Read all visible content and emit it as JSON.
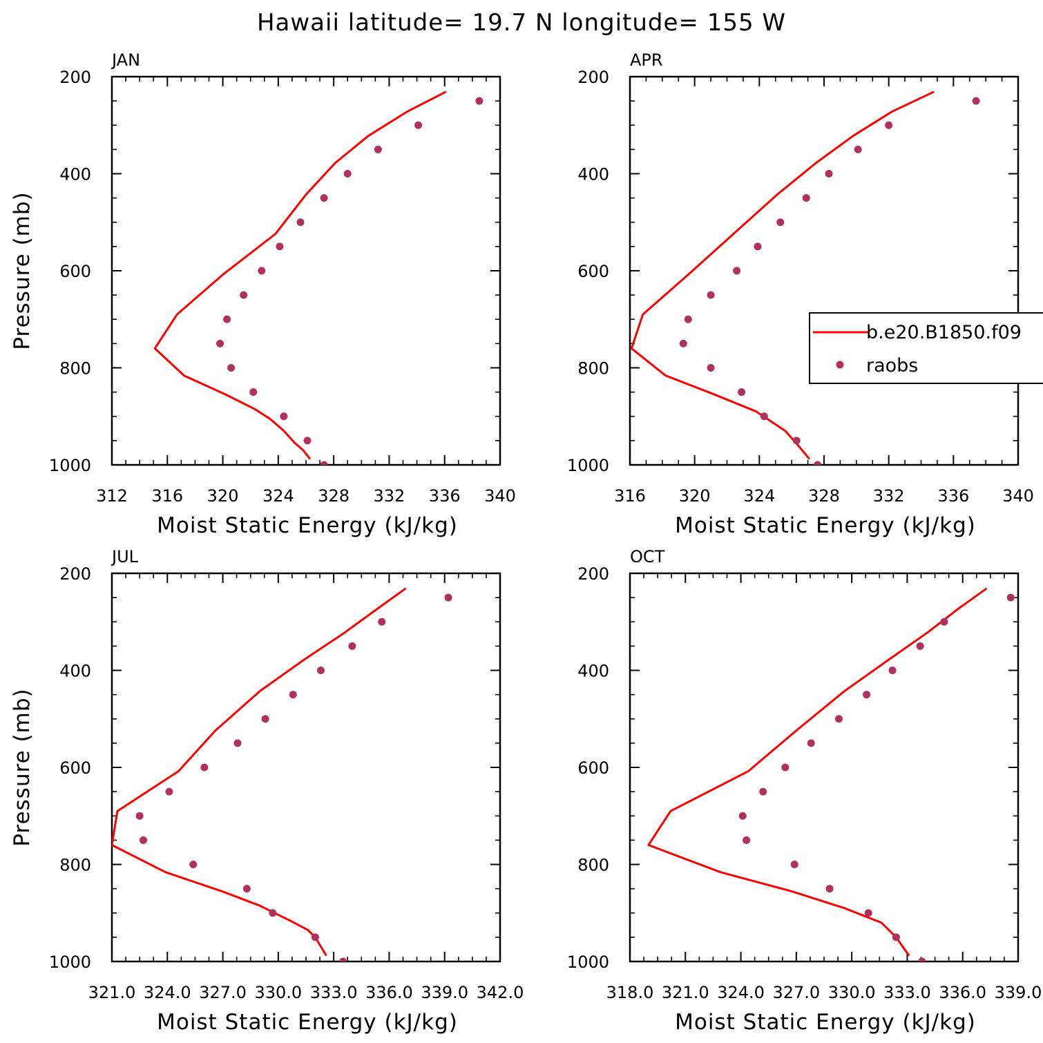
{
  "title": "Hawaii  latitude= 19.7 N longitude= 155 W",
  "colors": {
    "model_line": "#ff0000",
    "raobs_dot": "#b03060"
  },
  "legend": {
    "model_label": "b.e20.B1850.f09",
    "obs_label": "raobs"
  },
  "chart_data": [
    {
      "type": "scatter",
      "panel": "JAN",
      "xlabel": "Moist Static Energy (kJ/kg)",
      "ylabel": "Pressure (mb)",
      "xlim": [
        312,
        340
      ],
      "ylim": [
        200,
        1000
      ],
      "y_inverted": true,
      "x_ticks": [
        "312",
        "316",
        "320",
        "324",
        "328",
        "332",
        "336",
        "340"
      ],
      "y_ticks": [
        "200",
        "400",
        "600",
        "800",
        "1000"
      ],
      "series": [
        {
          "type": "line",
          "label_ref": "model",
          "x": [
            336.1,
            333.3,
            330.5,
            328.1,
            326.0,
            323.8,
            320.0,
            316.7,
            315.1,
            317.2,
            320.2,
            322.3,
            323.4,
            324.4,
            325.2,
            325.8,
            326.3
          ],
          "y": [
            231,
            272,
            322,
            378,
            443,
            524,
            608,
            690,
            760,
            816,
            855,
            885,
            905,
            930,
            955,
            970,
            988
          ]
        },
        {
          "type": "scatter",
          "label_ref": "obs",
          "x": [
            338.5,
            334.1,
            331.2,
            329.0,
            327.3,
            325.6,
            324.1,
            322.8,
            321.5,
            320.3,
            319.8,
            320.6,
            322.2,
            324.4,
            326.1,
            327.3
          ],
          "y": [
            250,
            300,
            350,
            400,
            450,
            500,
            550,
            600,
            650,
            700,
            750,
            800,
            850,
            900,
            950,
            1000
          ]
        }
      ]
    },
    {
      "type": "scatter",
      "panel": "APR",
      "xlabel": "Moist Static Energy (kJ/kg)",
      "ylabel": "",
      "xlim": [
        316,
        340
      ],
      "ylim": [
        200,
        1000
      ],
      "y_inverted": true,
      "x_ticks": [
        "316",
        "320",
        "324",
        "328",
        "332",
        "336",
        "340"
      ],
      "y_ticks": [
        "200",
        "400",
        "600",
        "800",
        "1000"
      ],
      "legend_position": "right",
      "series": [
        {
          "type": "line",
          "label_ref": "model",
          "x": [
            334.8,
            332.2,
            329.8,
            327.5,
            325.1,
            322.4,
            319.6,
            316.8,
            316.1,
            318.2,
            321.3,
            323.8,
            325.6,
            326.4,
            327.1
          ],
          "y": [
            231,
            272,
            322,
            378,
            443,
            524,
            608,
            690,
            760,
            816,
            856,
            890,
            930,
            960,
            988
          ]
        },
        {
          "type": "scatter",
          "label_ref": "obs",
          "x": [
            337.4,
            332.0,
            330.1,
            328.3,
            326.9,
            325.3,
            323.9,
            322.6,
            321.0,
            319.6,
            319.3,
            321.0,
            322.9,
            324.3,
            326.3,
            327.6
          ],
          "y": [
            250,
            300,
            350,
            400,
            450,
            500,
            550,
            600,
            650,
            700,
            750,
            800,
            850,
            900,
            950,
            1000
          ]
        }
      ]
    },
    {
      "type": "scatter",
      "panel": "JUL",
      "xlabel": "Moist Static Energy (kJ/kg)",
      "ylabel": "Pressure (mb)",
      "xlim": [
        321,
        342
      ],
      "ylim": [
        200,
        1000
      ],
      "y_inverted": true,
      "x_ticks": [
        "321.0",
        "324.0",
        "327.0",
        "330.0",
        "333.0",
        "336.0",
        "339.0",
        "342.0"
      ],
      "y_ticks": [
        "200",
        "400",
        "600",
        "800",
        "1000"
      ],
      "series": [
        {
          "type": "line",
          "label_ref": "model",
          "x": [
            336.9,
            335.4,
            333.6,
            331.4,
            329.0,
            326.6,
            324.6,
            321.3,
            321.0,
            323.9,
            327.0,
            329.0,
            330.6,
            331.6,
            332.0,
            332.6
          ],
          "y": [
            231,
            272,
            322,
            378,
            443,
            524,
            608,
            690,
            760,
            816,
            856,
            885,
            915,
            935,
            950,
            988
          ]
        },
        {
          "type": "scatter",
          "label_ref": "obs",
          "x": [
            339.2,
            335.6,
            334.0,
            332.3,
            330.8,
            329.3,
            327.8,
            326.0,
            324.1,
            322.5,
            322.7,
            325.4,
            328.3,
            329.7,
            332.0,
            333.5
          ],
          "y": [
            250,
            300,
            350,
            400,
            450,
            500,
            550,
            600,
            650,
            700,
            750,
            800,
            850,
            900,
            950,
            1000
          ]
        }
      ]
    },
    {
      "type": "scatter",
      "panel": "OCT",
      "xlabel": "Moist Static Energy (kJ/kg)",
      "ylabel": "",
      "xlim": [
        318,
        339
      ],
      "ylim": [
        200,
        1000
      ],
      "y_inverted": true,
      "x_ticks": [
        "318.0",
        "321.0",
        "324.0",
        "327.0",
        "330.0",
        "333.0",
        "336.0",
        "339.0"
      ],
      "y_ticks": [
        "200",
        "400",
        "600",
        "800",
        "1000"
      ],
      "series": [
        {
          "type": "line",
          "label_ref": "model",
          "x": [
            337.3,
            335.8,
            334.1,
            332.0,
            329.6,
            327.0,
            324.4,
            320.2,
            319.0,
            322.9,
            326.8,
            329.6,
            331.6,
            332.4,
            333.1
          ],
          "y": [
            231,
            272,
            322,
            378,
            443,
            524,
            608,
            690,
            760,
            816,
            856,
            890,
            920,
            950,
            988
          ]
        },
        {
          "type": "scatter",
          "label_ref": "obs",
          "x": [
            338.6,
            335.0,
            333.7,
            332.2,
            330.8,
            329.3,
            327.8,
            326.4,
            325.2,
            324.1,
            324.3,
            326.9,
            328.8,
            330.9,
            332.4,
            333.8
          ],
          "y": [
            250,
            300,
            350,
            400,
            450,
            500,
            550,
            600,
            650,
            700,
            750,
            800,
            850,
            900,
            950,
            1000
          ]
        }
      ]
    }
  ]
}
